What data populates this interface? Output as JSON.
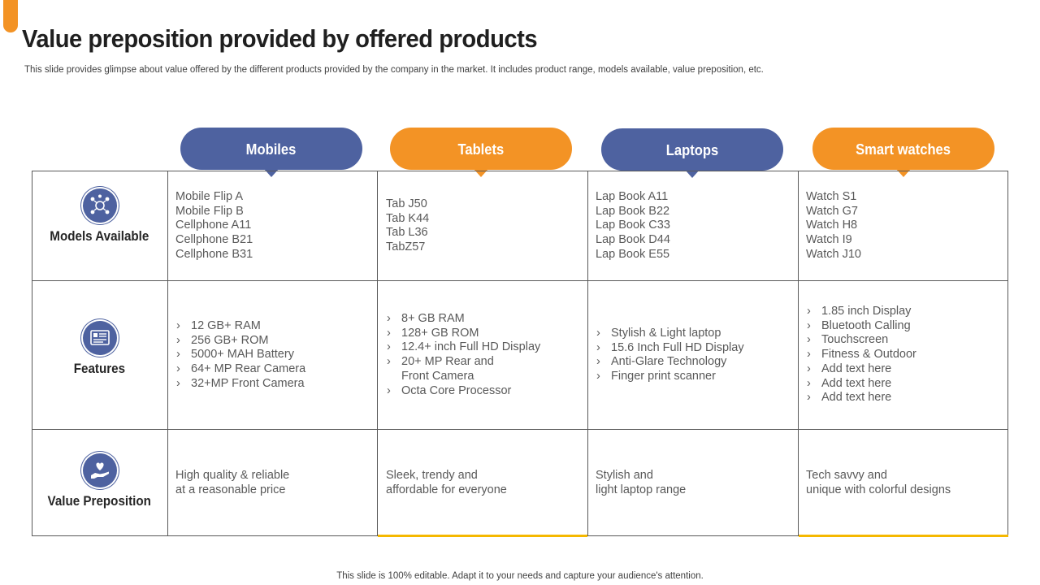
{
  "slide": {
    "title": "Value preposition provided by offered products",
    "subtitle": "This slide provides glimpse about value offered by the different products provided by the company in the market. It includes product range, models available, value preposition, etc.",
    "footer": "This slide is 100% editable. Adapt it to your needs and capture your audience's attention."
  },
  "colors": {
    "blue": "#4e62a0",
    "orange": "#f39325",
    "gold": "#f5b800"
  },
  "columns": [
    "Mobiles",
    "Tablets",
    "Laptops",
    "Smart watches"
  ],
  "rows": [
    {
      "title": "Models Available",
      "icon": "network-icon"
    },
    {
      "title": "Features",
      "icon": "list-board-icon"
    },
    {
      "title": "Value Preposition",
      "icon": "hand-heart-icon"
    }
  ],
  "models": [
    [
      "Mobile Flip A",
      "Mobile Flip B",
      "Cellphone A11",
      "Cellphone B21",
      "Cellphone B31"
    ],
    [
      "Tab J50",
      "Tab K44",
      "Tab L36",
      "TabZ57"
    ],
    [
      "Lap Book A11",
      "Lap Book B22",
      "Lap Book C33",
      "Lap Book D44",
      "Lap Book E55"
    ],
    [
      "Watch S1",
      "Watch G7",
      "Watch H8",
      "Watch I9",
      "Watch J10"
    ]
  ],
  "features": [
    [
      "12 GB+ RAM",
      "256 GB+ ROM",
      "5000+ MAH Battery",
      "64+ MP Rear Camera",
      "32+MP Front Camera"
    ],
    [
      "8+ GB RAM",
      "128+ GB ROM",
      "12.4+ inch Full HD Display",
      "20+ MP Rear and",
      "Front Camera",
      "Octa Core Processor"
    ],
    [
      "Stylish & Light laptop",
      "15.6 Inch Full HD Display",
      "Anti-Glare Technology",
      "Finger print scanner"
    ],
    [
      "1.85 inch Display",
      "Bluetooth Calling",
      "Touchscreen",
      "Fitness & Outdoor",
      "Add text here",
      "Add text here",
      "Add text here"
    ]
  ],
  "value": [
    [
      "High quality & reliable",
      "at a reasonable price"
    ],
    [
      "Sleek, trendy and",
      "affordable for everyone"
    ],
    [
      "Stylish and",
      "light laptop range"
    ],
    [
      "Tech savvy and",
      "unique with colorful designs"
    ]
  ]
}
